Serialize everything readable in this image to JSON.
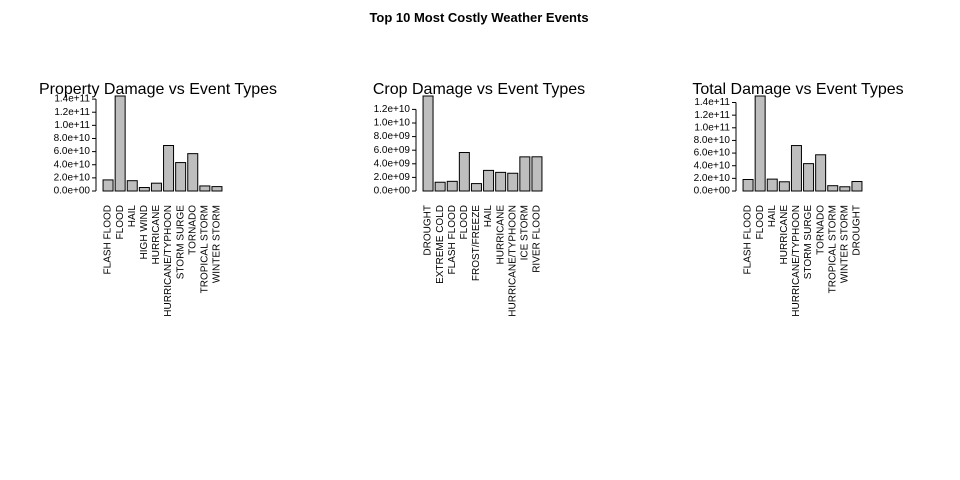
{
  "title": "Top 10 Most Costly Weather Events",
  "chart_data": [
    {
      "type": "bar",
      "title": "Property Damage vs Event Types",
      "categories": [
        "FLASH FLOOD",
        "FLOOD",
        "HAIL",
        "HIGH WIND",
        "HURRICANE",
        "HURRICANE/TYPHOON",
        "STORM SURGE",
        "TORNADO",
        "TROPICAL STORM",
        "WINTER STORM"
      ],
      "values": [
        16900000000,
        144700000000,
        15700000000,
        5300000000,
        11900000000,
        69300000000,
        43300000000,
        56900000000,
        7700000000,
        6700000000
      ],
      "color": "#bebebe",
      "ylim": [
        0,
        144700000000
      ],
      "yticks": [
        {
          "value": 0,
          "label": "0.0e+00"
        },
        {
          "value": 20000000000,
          "label": "2.0e+10"
        },
        {
          "value": 40000000000,
          "label": "4.0e+10"
        },
        {
          "value": 60000000000,
          "label": "6.0e+10"
        },
        {
          "value": 80000000000,
          "label": "8.0e+10"
        },
        {
          "value": 100000000000,
          "label": "1.0e+11"
        },
        {
          "value": 120000000000,
          "label": "1.2e+11"
        },
        {
          "value": 140000000000,
          "label": "1.4e+11"
        }
      ]
    },
    {
      "type": "bar",
      "title": "Crop Damage vs Event Types",
      "categories": [
        "DROUGHT",
        "EXTREME COLD",
        "FLASH FLOOD",
        "FLOOD",
        "FROST/FREEZE",
        "HAIL",
        "HURRICANE",
        "HURRICANE/TYPHOON",
        "ICE STORM",
        "RIVER FLOOD"
      ],
      "values": [
        13970000000,
        1290000000,
        1420000000,
        5660000000,
        1090000000,
        3030000000,
        2740000000,
        2610000000,
        5020000000,
        5030000000
      ],
      "color": "#bebebe",
      "ylim": [
        0,
        13970000000
      ],
      "yticks": [
        {
          "value": 0,
          "label": "0.0e+00"
        },
        {
          "value": 2000000000,
          "label": "2.0e+09"
        },
        {
          "value": 4000000000,
          "label": "4.0e+09"
        },
        {
          "value": 6000000000,
          "label": "6.0e+09"
        },
        {
          "value": 8000000000,
          "label": "8.0e+09"
        },
        {
          "value": 10000000000,
          "label": "1.0e+10"
        },
        {
          "value": 12000000000,
          "label": "1.2e+10"
        }
      ]
    },
    {
      "type": "bar",
      "title": "Total Damage vs Event Types",
      "categories": [
        "FLASH FLOOD",
        "FLOOD",
        "HAIL",
        "HURRICANE",
        "HURRICANE/TYPHOON",
        "STORM SURGE",
        "TORNADO",
        "TROPICAL STORM",
        "WINTER STORM",
        "DROUGHT"
      ],
      "values": [
        18200000000,
        150300000000,
        18800000000,
        14600000000,
        71900000000,
        43300000000,
        57300000000,
        8400000000,
        6700000000,
        15000000000
      ],
      "color": "#bebebe",
      "ylim": [
        0,
        150300000000
      ],
      "yticks": [
        {
          "value": 0,
          "label": "0.0e+00"
        },
        {
          "value": 20000000000,
          "label": "2.0e+10"
        },
        {
          "value": 40000000000,
          "label": "4.0e+10"
        },
        {
          "value": 60000000000,
          "label": "6.0e+10"
        },
        {
          "value": 80000000000,
          "label": "8.0e+10"
        },
        {
          "value": 100000000000,
          "label": "1.0e+11"
        },
        {
          "value": 120000000000,
          "label": "1.2e+11"
        },
        {
          "value": 140000000000,
          "label": "1.4e+11"
        }
      ]
    }
  ]
}
